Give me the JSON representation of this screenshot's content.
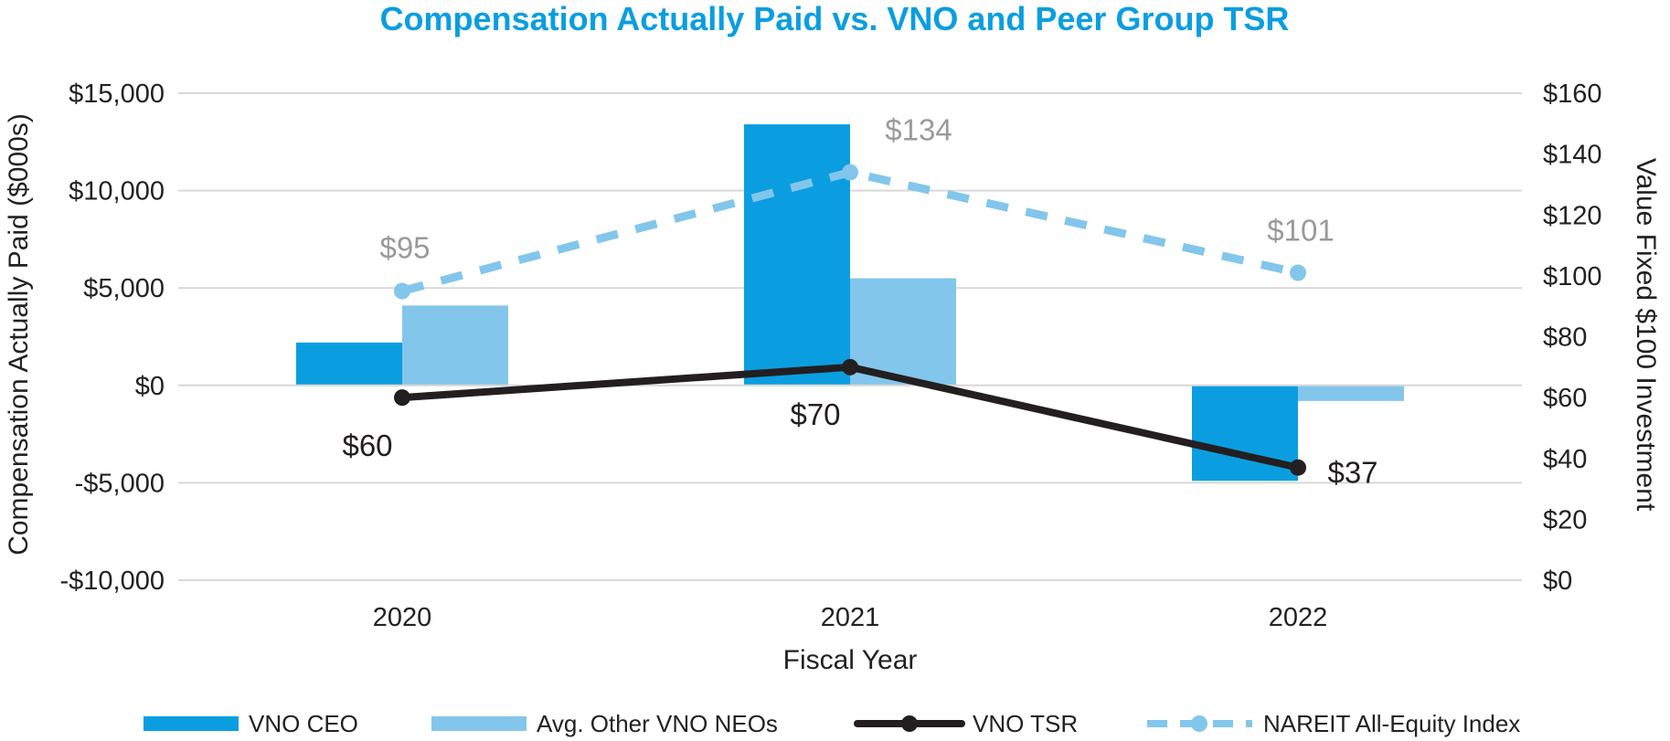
{
  "chart_data": {
    "type": "bar",
    "title": "Compensation Actually Paid vs. VNO and Peer Group TSR",
    "xlabel": "Fiscal Year",
    "ylabel": "Compensation Actually Paid ($000s)",
    "y2label": "Value Fixed $100 Investment",
    "categories": [
      "2020",
      "2021",
      "2022"
    ],
    "ylim": [
      -10000,
      15000
    ],
    "y2lim": [
      0,
      160
    ],
    "yticks": [
      15000,
      10000,
      5000,
      0,
      -5000,
      -10000
    ],
    "ytick_labels": [
      "$15,000",
      "$10,000",
      "$5,000",
      "$0",
      "-$5,000",
      "-$10,000"
    ],
    "y2ticks": [
      160,
      140,
      120,
      100,
      80,
      60,
      40,
      20,
      0
    ],
    "y2tick_labels": [
      "$160",
      "$140",
      "$120",
      "$100",
      "$80",
      "$60",
      "$40",
      "$20",
      "$0"
    ],
    "bar_series": [
      {
        "name": "VNO CEO",
        "color": "#0a9ee0",
        "values": [
          2200,
          13400,
          -4900
        ]
      },
      {
        "name": "Avg. Other VNO NEOs",
        "color": "#82c6ec",
        "values": [
          4100,
          5500,
          -800
        ]
      }
    ],
    "line_series": [
      {
        "name": "VNO TSR",
        "color": "#231f20",
        "style": "solid",
        "axis": "right",
        "values": [
          60,
          70,
          37
        ],
        "labels": [
          "$60",
          "$70",
          "$37"
        ],
        "label_color": "#231f20"
      },
      {
        "name": "NAREIT All-Equity Index",
        "color": "#82c6ec",
        "style": "dashed",
        "axis": "right",
        "values": [
          95,
          134,
          101
        ],
        "labels": [
          "$95",
          "$134",
          "$101"
        ],
        "label_color": "#9a9a9a"
      }
    ],
    "grid": true,
    "legend_position": "bottom",
    "title_color": "#0a9ee0"
  }
}
